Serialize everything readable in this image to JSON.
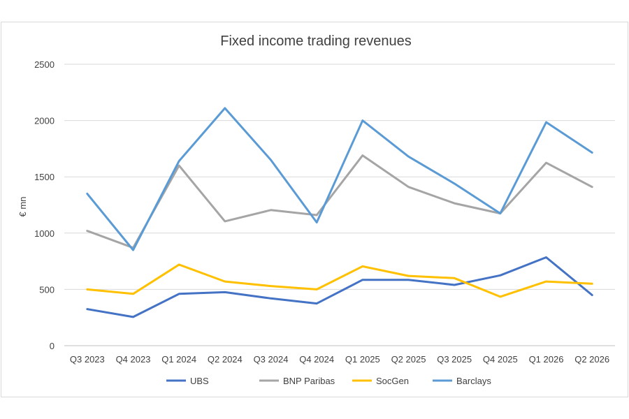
{
  "chart_data": {
    "type": "line",
    "title": "Fixed income trading revenues",
    "ylabel": "€ mn",
    "xlabel": "",
    "categories": [
      "Q3 2023",
      "Q4 2023",
      "Q1 2024",
      "Q2 2024",
      "Q3 2024",
      "Q4 2024",
      "Q1 2025",
      "Q2 2025",
      "Q3 2025",
      "Q4 2025",
      "Q1 2026",
      "Q2 2026"
    ],
    "ylim": [
      0,
      2500
    ],
    "yticks": [
      0,
      500,
      1000,
      1500,
      2000,
      2500
    ],
    "grid": true,
    "legend_position": "bottom",
    "series": [
      {
        "name": "UBS",
        "color": "#4472C4",
        "values": [
          325,
          255,
          460,
          475,
          420,
          375,
          585,
          585,
          540,
          625,
          785,
          450
        ]
      },
      {
        "name": "BNP Paribas",
        "color": "#A5A5A5",
        "values": [
          1020,
          870,
          1600,
          1105,
          1205,
          1160,
          1690,
          1410,
          1265,
          1175,
          1625,
          1410
        ]
      },
      {
        "name": "SocGen",
        "color": "#FFC000",
        "values": [
          500,
          460,
          720,
          570,
          530,
          500,
          705,
          620,
          600,
          435,
          570,
          550
        ]
      },
      {
        "name": "Barclays",
        "color": "#5B9BD5",
        "values": [
          1350,
          850,
          1640,
          2110,
          1650,
          1095,
          2000,
          1680,
          1440,
          1175,
          1985,
          1715
        ]
      }
    ]
  }
}
